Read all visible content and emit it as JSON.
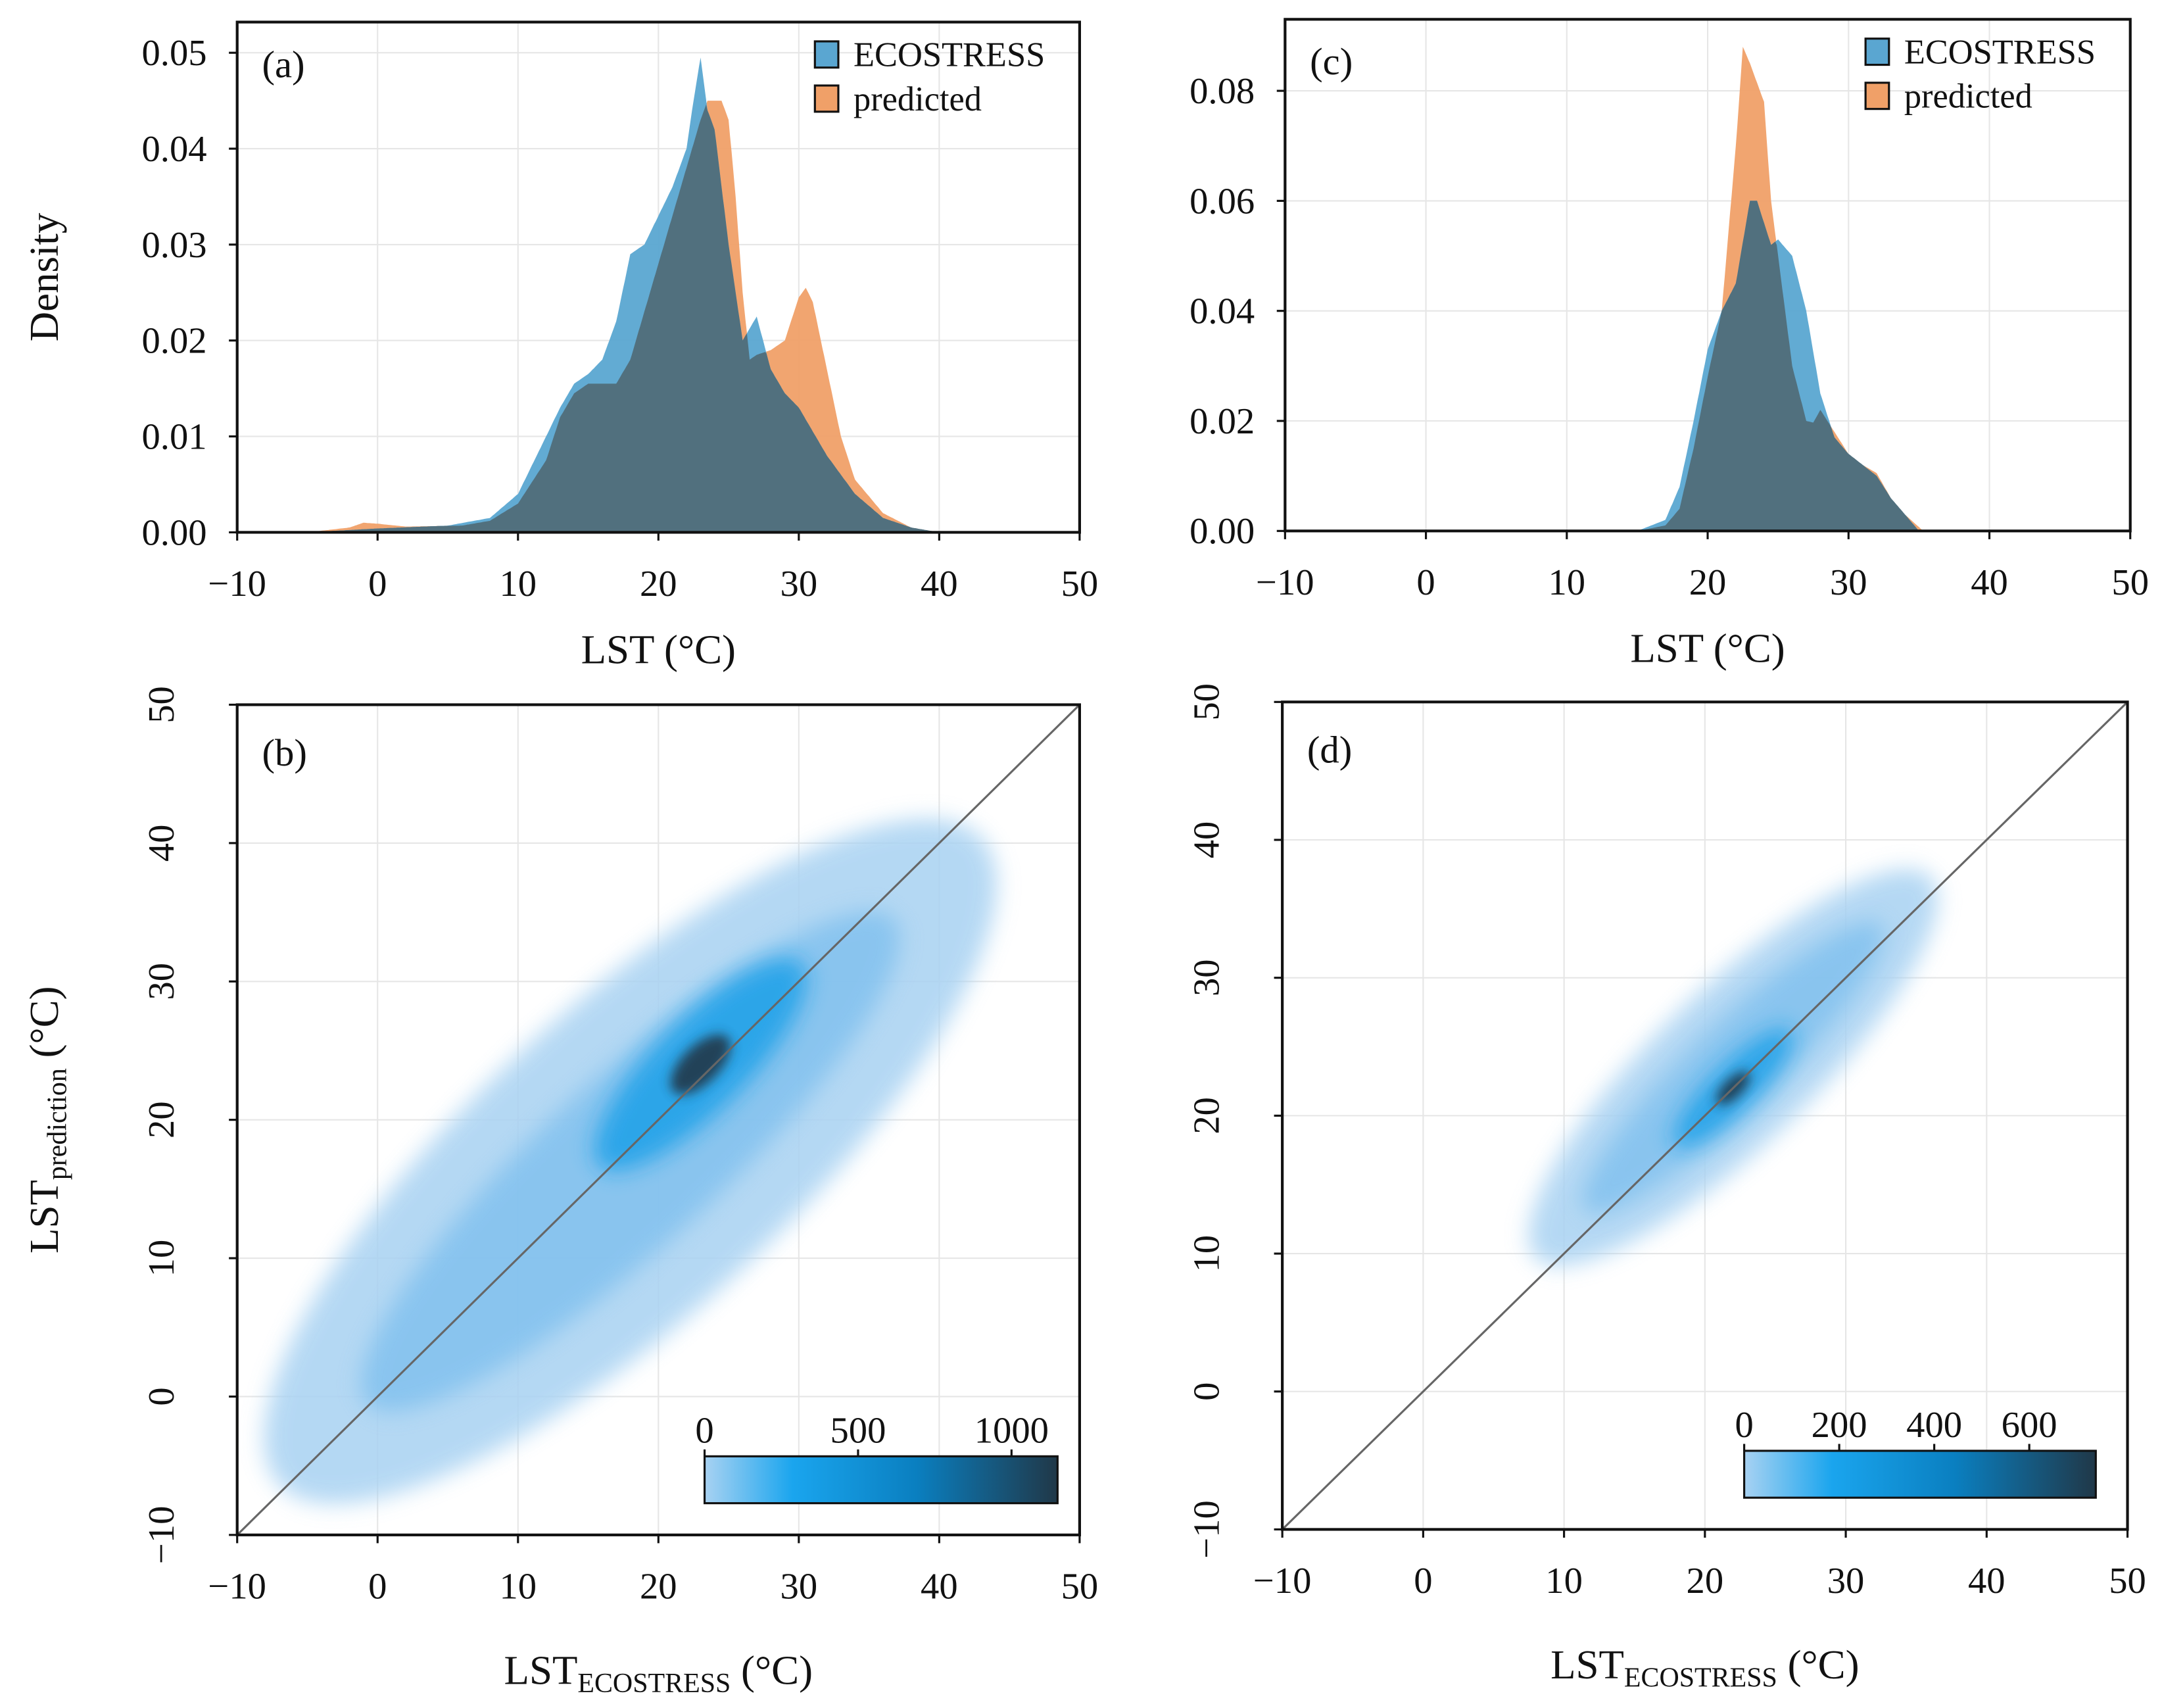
{
  "chart_data": [
    {
      "panel": "(a)",
      "type": "area",
      "xlabel": "LST (°C)",
      "ylabel": "Density",
      "xlim": [
        -10,
        50
      ],
      "ylim": [
        0,
        0.0532
      ],
      "xticks": [
        "−10",
        "0",
        "10",
        "20",
        "30",
        "40",
        "50"
      ],
      "yticks": [
        "0.00",
        "0.01",
        "0.02",
        "0.03",
        "0.04",
        "0.05"
      ],
      "ytick_values": [
        0,
        0.01,
        0.02,
        0.03,
        0.04,
        0.05
      ],
      "legend": [
        "ECOSTRESS",
        "predicted"
      ],
      "legend_position": "top-right",
      "series": [
        {
          "name": "ECOSTRESS",
          "x": [
            -5,
            0,
            5,
            8,
            10,
            12,
            13,
            14,
            15,
            16,
            17,
            18,
            19,
            20,
            21,
            22,
            22.5,
            23,
            23.5,
            24,
            25,
            26,
            27,
            28,
            29,
            30,
            32,
            34,
            36,
            38,
            40
          ],
          "values": [
            0,
            0.0004,
            0.0007,
            0.0015,
            0.004,
            0.01,
            0.013,
            0.0155,
            0.0165,
            0.018,
            0.022,
            0.029,
            0.03,
            0.033,
            0.036,
            0.04,
            0.045,
            0.0495,
            0.044,
            0.042,
            0.03,
            0.02,
            0.0225,
            0.017,
            0.0145,
            0.013,
            0.008,
            0.004,
            0.0015,
            0.0005,
            0
          ]
        },
        {
          "name": "predicted",
          "x": [
            -5,
            -2,
            -1,
            0,
            2,
            6,
            8,
            10,
            12,
            13,
            14,
            15,
            17,
            18,
            19,
            20,
            21,
            22,
            23,
            23.5,
            24.5,
            25,
            25.5,
            26,
            26.5,
            27,
            28,
            29,
            30,
            30.5,
            31,
            32,
            33,
            34,
            36,
            38,
            40
          ],
          "values": [
            0,
            0.0005,
            0.001,
            0.0009,
            0.0006,
            0.0007,
            0.0012,
            0.003,
            0.0075,
            0.012,
            0.0145,
            0.0155,
            0.0155,
            0.018,
            0.023,
            0.028,
            0.033,
            0.038,
            0.043,
            0.045,
            0.045,
            0.043,
            0.035,
            0.025,
            0.018,
            0.0185,
            0.019,
            0.02,
            0.0245,
            0.0255,
            0.024,
            0.017,
            0.01,
            0.0055,
            0.002,
            0.0005,
            0
          ]
        }
      ]
    },
    {
      "panel": "(c)",
      "type": "area",
      "xlabel": "LST (°C)",
      "ylabel": "",
      "xlim": [
        -10,
        50
      ],
      "ylim": [
        0,
        0.093
      ],
      "xticks": [
        "−10",
        "0",
        "10",
        "20",
        "30",
        "40",
        "50"
      ],
      "yticks": [
        "0.00",
        "0.02",
        "0.04",
        "0.06",
        "0.08"
      ],
      "ytick_values": [
        0,
        0.02,
        0.04,
        0.06,
        0.08
      ],
      "legend": [
        "ECOSTRESS",
        "predicted"
      ],
      "legend_position": "top-right",
      "series": [
        {
          "name": "ECOSTRESS",
          "x": [
            15,
            17,
            18,
            19,
            20,
            21,
            22,
            23,
            23.5,
            24.5,
            25,
            26,
            27,
            28,
            29,
            30,
            31,
            32,
            33,
            34,
            35
          ],
          "values": [
            0,
            0.002,
            0.008,
            0.02,
            0.033,
            0.04,
            0.045,
            0.06,
            0.06,
            0.052,
            0.053,
            0.05,
            0.04,
            0.025,
            0.017,
            0.014,
            0.012,
            0.01,
            0.006,
            0.003,
            0
          ]
        },
        {
          "name": "predicted",
          "x": [
            15,
            17,
            18,
            19,
            20,
            21,
            22,
            22.5,
            23,
            24,
            24.5,
            25,
            26,
            27,
            27.5,
            28,
            29,
            30,
            31,
            32,
            33,
            34,
            35.3
          ],
          "values": [
            0,
            0.001,
            0.004,
            0.015,
            0.028,
            0.04,
            0.07,
            0.088,
            0.085,
            0.078,
            0.06,
            0.05,
            0.03,
            0.02,
            0.0197,
            0.022,
            0.018,
            0.014,
            0.012,
            0.0105,
            0.006,
            0.003,
            0
          ]
        }
      ]
    },
    {
      "panel": "(b)",
      "type": "heatmap",
      "xlabel": "LST",
      "xlabel_sub": "ECOSTRESS",
      "xlabel_unit": " (°C)",
      "ylabel": "LST",
      "ylabel_sub": "prediction",
      "ylabel_unit": " (°C)",
      "xlim": [
        -10,
        50
      ],
      "ylim": [
        -10,
        50
      ],
      "xticks": [
        "−10",
        "0",
        "10",
        "20",
        "30",
        "40",
        "50"
      ],
      "yticks": [
        "−10",
        "0",
        "10",
        "20",
        "30",
        "40",
        "50"
      ],
      "colorbar": {
        "ticks": [
          "0",
          "500",
          "1000"
        ],
        "tick_values": [
          0,
          500,
          1000
        ],
        "max": 1150
      },
      "peak": [
        23,
        24
      ],
      "extent": {
        "x": [
          -7,
          43
        ],
        "y": [
          -6,
          40
        ]
      }
    },
    {
      "panel": "(d)",
      "type": "heatmap",
      "xlabel": "LST",
      "xlabel_sub": "ECOSTRESS",
      "xlabel_unit": " (°C)",
      "ylabel": "",
      "xlim": [
        -10,
        50
      ],
      "ylim": [
        -10,
        50
      ],
      "xticks": [
        "−10",
        "0",
        "10",
        "20",
        "30",
        "40",
        "50"
      ],
      "yticks": [
        "−10",
        "0",
        "10",
        "20",
        "30",
        "40",
        "50"
      ],
      "colorbar": {
        "ticks": [
          "0",
          "200",
          "400",
          "600"
        ],
        "tick_values": [
          0,
          200,
          400,
          600
        ],
        "max": 740
      },
      "peak": [
        22,
        22
      ],
      "extent": {
        "x": [
          8,
          36
        ],
        "y": [
          10,
          37
        ]
      }
    }
  ],
  "colors": {
    "ecostress": "#5aa6d1",
    "predicted": "#f0a068",
    "overlap": "#51707e",
    "scatter_light": "#a8d2f2",
    "scatter_mid": "#1aa0e8",
    "scatter_dark": "#203848"
  }
}
